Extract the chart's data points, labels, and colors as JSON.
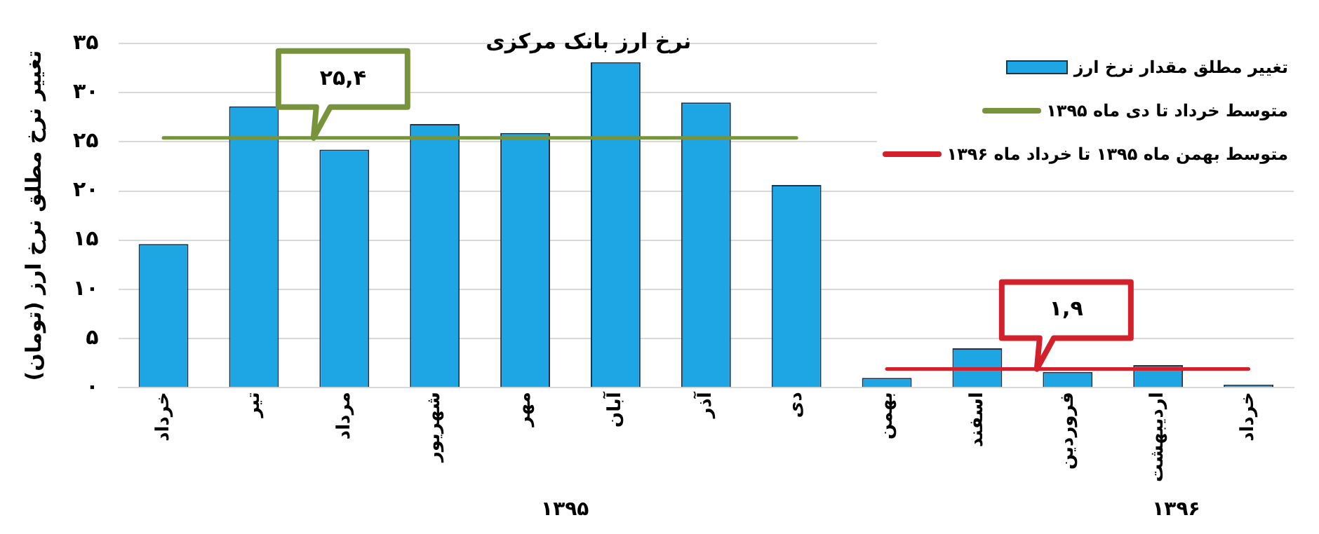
{
  "chart_data": {
    "type": "bar",
    "title": "نرخ ارز بانک مرکزی",
    "ylabel": "تغییر نرخ مطلق نرخ ارز (تومان)",
    "categories": [
      "خرداد",
      "تیر",
      "مرداد",
      "شهریور",
      "مهر",
      "آبان",
      "آذر",
      "دی",
      "بهمن",
      "اسفند",
      "فروردین",
      "اردیبهشت",
      "خرداد"
    ],
    "series": [
      {
        "name": "تغییر مطلق مقدار نرخ ارز",
        "color": "#1ea5e3",
        "values": [
          14.6,
          28.6,
          24.2,
          26.8,
          25.9,
          33.1,
          29.0,
          20.6,
          1.0,
          4.0,
          1.6,
          2.3,
          0.3
        ]
      },
      {
        "type": "line",
        "name": "متوسط خرداد تا دی ماه ۱۳۹۵",
        "color": "#77933c",
        "values": [
          25.4,
          25.4,
          25.4,
          25.4,
          25.4,
          25.4,
          25.4,
          25.4,
          null,
          null,
          null,
          null,
          null
        ]
      },
      {
        "type": "line",
        "name": "متوسط بهمن ماه ۱۳۹۵ تا خرداد ماه ۱۳۹۶",
        "color": "#d4202a",
        "values": [
          null,
          null,
          null,
          null,
          null,
          null,
          null,
          null,
          1.9,
          1.9,
          1.9,
          1.9,
          1.9
        ]
      }
    ],
    "annotations": [
      {
        "text": "۲۵,۴",
        "x": "مرداد",
        "y": 25.4
      },
      {
        "text": "۱,۹",
        "x": "فروردین",
        "y": 1.9
      },
      "۱۳۹۵",
      "۱۳۹۶"
    ],
    "ylim": [
      0,
      35
    ],
    "yticks": [
      {
        "value": 0,
        "label": "۰"
      },
      {
        "value": 5,
        "label": "۵"
      },
      {
        "value": 10,
        "label": "۱۰"
      },
      {
        "value": 15,
        "label": "۱۵"
      },
      {
        "value": 20,
        "label": "۲۰"
      },
      {
        "value": 25,
        "label": "۲۵"
      },
      {
        "value": 30,
        "label": "۳۰"
      },
      {
        "value": 35,
        "label": "۳۵"
      }
    ],
    "grid": "y",
    "legend": "top right"
  }
}
